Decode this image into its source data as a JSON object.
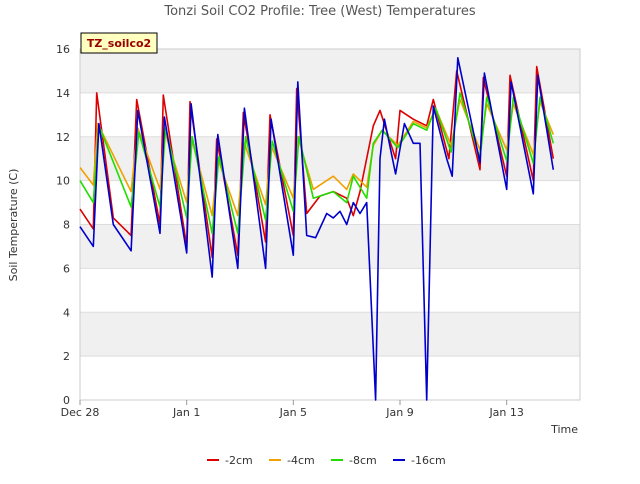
{
  "chart_data": {
    "type": "line",
    "title": "Tonzi Soil CO2 Profile: Tree (West) Temperatures",
    "xlabel": "Time",
    "ylabel": "Soil Temperature (C)",
    "badge": "TZ_soilco2",
    "xlim": [
      "2022-12-28",
      "2023-01-15 18:00"
    ],
    "ylim": [
      0,
      16
    ],
    "x_ticks": [
      {
        "x": "2022-12-28",
        "label": "Dec 28"
      },
      {
        "x": "2023-01-01",
        "label": "Jan 1"
      },
      {
        "x": "2023-01-05",
        "label": "Jan 5"
      },
      {
        "x": "2023-01-09",
        "label": "Jan 9"
      },
      {
        "x": "2023-01-13",
        "label": "Jan 13"
      }
    ],
    "y_ticks": [
      0,
      2,
      4,
      6,
      8,
      10,
      12,
      14,
      16
    ],
    "grid": "horizontal bands",
    "legend_position": "bottom",
    "series": [
      {
        "name": "-2cm",
        "color": "#dd0000",
        "points": [
          [
            "2022-12-28 00:00",
            8.7
          ],
          [
            "2022-12-28 12:00",
            7.8
          ],
          [
            "2022-12-28 15:00",
            14.0
          ],
          [
            "2022-12-29 06:00",
            8.3
          ],
          [
            "2022-12-29 22:00",
            7.5
          ],
          [
            "2022-12-30 03:00",
            13.7
          ],
          [
            "2022-12-31 00:00",
            8.0
          ],
          [
            "2022-12-31 03:00",
            13.9
          ],
          [
            "2023-01-01 00:00",
            7.0
          ],
          [
            "2023-01-01 03:00",
            13.6
          ],
          [
            "2023-01-01 23:00",
            6.5
          ],
          [
            "2023-01-02 03:00",
            11.9
          ],
          [
            "2023-01-02 22:00",
            6.6
          ],
          [
            "2023-01-03 03:00",
            13.1
          ],
          [
            "2023-01-03 23:00",
            7.2
          ],
          [
            "2023-01-04 03:00",
            13.0
          ],
          [
            "2023-01-05 00:00",
            7.5
          ],
          [
            "2023-01-05 03:00",
            14.2
          ],
          [
            "2023-01-05 12:00",
            8.5
          ],
          [
            "2023-01-06 00:00",
            9.3
          ],
          [
            "2023-01-06 12:00",
            9.5
          ],
          [
            "2023-01-07 00:00",
            9.2
          ],
          [
            "2023-01-07 06:00",
            8.4
          ],
          [
            "2023-01-07 12:00",
            9.5
          ],
          [
            "2023-01-08 00:00",
            12.5
          ],
          [
            "2023-01-08 06:00",
            13.2
          ],
          [
            "2023-01-08 20:00",
            11.0
          ],
          [
            "2023-01-09 00:00",
            13.2
          ],
          [
            "2023-01-09 12:00",
            12.8
          ],
          [
            "2023-01-10 00:00",
            12.5
          ],
          [
            "2023-01-10 06:00",
            13.7
          ],
          [
            "2023-01-10 20:00",
            11.0
          ],
          [
            "2023-01-11 03:00",
            15.0
          ],
          [
            "2023-01-12 00:00",
            10.5
          ],
          [
            "2023-01-12 03:00",
            14.7
          ],
          [
            "2023-01-13 00:00",
            10.2
          ],
          [
            "2023-01-13 03:00",
            14.8
          ],
          [
            "2023-01-14 00:00",
            10.0
          ],
          [
            "2023-01-14 03:00",
            15.2
          ],
          [
            "2023-01-14 18:00",
            11.0
          ]
        ]
      },
      {
        "name": "-4cm",
        "color": "#f0a000",
        "points": [
          [
            "2022-12-28 00:00",
            10.6
          ],
          [
            "2022-12-28 12:00",
            9.8
          ],
          [
            "2022-12-28 16:00",
            12.6
          ],
          [
            "2022-12-29 22:00",
            9.5
          ],
          [
            "2022-12-30 04:00",
            12.4
          ],
          [
            "2022-12-31 00:00",
            9.6
          ],
          [
            "2022-12-31 04:00",
            12.3
          ],
          [
            "2023-01-01 00:00",
            9.0
          ],
          [
            "2023-01-01 04:00",
            12.0
          ],
          [
            "2023-01-01 23:00",
            8.4
          ],
          [
            "2023-01-02 04:00",
            11.0
          ],
          [
            "2023-01-02 22:00",
            8.4
          ],
          [
            "2023-01-03 04:00",
            11.7
          ],
          [
            "2023-01-03 23:00",
            8.9
          ],
          [
            "2023-01-04 04:00",
            11.6
          ],
          [
            "2023-01-05 00:00",
            9.2
          ],
          [
            "2023-01-05 04:00",
            12.0
          ],
          [
            "2023-01-05 18:00",
            9.6
          ],
          [
            "2023-01-06 12:00",
            10.2
          ],
          [
            "2023-01-07 00:00",
            9.6
          ],
          [
            "2023-01-07 06:00",
            10.3
          ],
          [
            "2023-01-07 18:00",
            9.7
          ],
          [
            "2023-01-08 00:00",
            11.6
          ],
          [
            "2023-01-08 08:00",
            12.3
          ],
          [
            "2023-01-08 22:00",
            11.6
          ],
          [
            "2023-01-09 12:00",
            12.7
          ],
          [
            "2023-01-10 00:00",
            12.4
          ],
          [
            "2023-01-10 08:00",
            13.3
          ],
          [
            "2023-01-10 22:00",
            11.6
          ],
          [
            "2023-01-11 06:00",
            13.7
          ],
          [
            "2023-01-12 00:00",
            11.4
          ],
          [
            "2023-01-12 06:00",
            13.5
          ],
          [
            "2023-01-13 00:00",
            11.4
          ],
          [
            "2023-01-13 06:00",
            13.5
          ],
          [
            "2023-01-14 00:00",
            11.2
          ],
          [
            "2023-01-14 06:00",
            13.6
          ],
          [
            "2023-01-14 18:00",
            12.1
          ]
        ]
      },
      {
        "name": "-8cm",
        "color": "#22dd00",
        "points": [
          [
            "2022-12-28 00:00",
            10.0
          ],
          [
            "2022-12-28 12:00",
            9.0
          ],
          [
            "2022-12-28 17:00",
            12.5
          ],
          [
            "2022-12-29 22:00",
            8.8
          ],
          [
            "2022-12-30 05:00",
            12.2
          ],
          [
            "2022-12-31 00:00",
            8.8
          ],
          [
            "2022-12-31 05:00",
            12.4
          ],
          [
            "2023-01-01 00:00",
            8.3
          ],
          [
            "2023-01-01 05:00",
            12.0
          ],
          [
            "2023-01-01 23:00",
            7.6
          ],
          [
            "2023-01-02 05:00",
            11.1
          ],
          [
            "2023-01-02 22:00",
            7.6
          ],
          [
            "2023-01-03 05:00",
            12.0
          ],
          [
            "2023-01-03 23:00",
            8.2
          ],
          [
            "2023-01-04 05:00",
            11.8
          ],
          [
            "2023-01-05 00:00",
            8.6
          ],
          [
            "2023-01-05 05:00",
            12.0
          ],
          [
            "2023-01-05 18:00",
            9.2
          ],
          [
            "2023-01-06 12:00",
            9.5
          ],
          [
            "2023-01-07 00:00",
            9.0
          ],
          [
            "2023-01-07 06:00",
            10.2
          ],
          [
            "2023-01-07 18:00",
            9.2
          ],
          [
            "2023-01-08 00:00",
            11.7
          ],
          [
            "2023-01-08 08:00",
            12.3
          ],
          [
            "2023-01-08 22:00",
            11.5
          ],
          [
            "2023-01-09 12:00",
            12.6
          ],
          [
            "2023-01-10 00:00",
            12.3
          ],
          [
            "2023-01-10 08:00",
            13.3
          ],
          [
            "2023-01-10 22:00",
            11.3
          ],
          [
            "2023-01-11 06:00",
            14.0
          ],
          [
            "2023-01-12 00:00",
            11.0
          ],
          [
            "2023-01-12 06:00",
            13.8
          ],
          [
            "2023-01-13 00:00",
            10.9
          ],
          [
            "2023-01-13 06:00",
            13.8
          ],
          [
            "2023-01-14 00:00",
            10.8
          ],
          [
            "2023-01-14 06:00",
            13.8
          ],
          [
            "2023-01-14 18:00",
            11.7
          ]
        ]
      },
      {
        "name": "-16cm",
        "color": "#0000cc",
        "points": [
          [
            "2022-12-28 00:00",
            7.9
          ],
          [
            "2022-12-28 12:00",
            7.0
          ],
          [
            "2022-12-28 17:00",
            12.6
          ],
          [
            "2022-12-29 06:00",
            8.0
          ],
          [
            "2022-12-29 22:00",
            6.8
          ],
          [
            "2022-12-30 04:00",
            13.2
          ],
          [
            "2022-12-31 00:00",
            7.6
          ],
          [
            "2022-12-31 04:00",
            12.9
          ],
          [
            "2023-01-01 00:00",
            6.7
          ],
          [
            "2023-01-01 04:00",
            13.5
          ],
          [
            "2023-01-01 23:00",
            5.6
          ],
          [
            "2023-01-02 04:00",
            12.1
          ],
          [
            "2023-01-02 22:00",
            6.0
          ],
          [
            "2023-01-03 04:00",
            13.3
          ],
          [
            "2023-01-03 23:00",
            6.0
          ],
          [
            "2023-01-04 04:00",
            12.8
          ],
          [
            "2023-01-05 00:00",
            6.6
          ],
          [
            "2023-01-05 04:00",
            14.5
          ],
          [
            "2023-01-05 12:00",
            7.5
          ],
          [
            "2023-01-05 20:00",
            7.4
          ],
          [
            "2023-01-06 06:00",
            8.5
          ],
          [
            "2023-01-06 12:00",
            8.3
          ],
          [
            "2023-01-06 18:00",
            8.6
          ],
          [
            "2023-01-07 00:00",
            8.0
          ],
          [
            "2023-01-07 06:00",
            9.0
          ],
          [
            "2023-01-07 12:00",
            8.5
          ],
          [
            "2023-01-07 18:00",
            9.0
          ],
          [
            "2023-01-08 02:00",
            0.0
          ],
          [
            "2023-01-08 06:00",
            11.0
          ],
          [
            "2023-01-08 10:00",
            12.8
          ],
          [
            "2023-01-08 20:00",
            10.3
          ],
          [
            "2023-01-09 04:00",
            12.6
          ],
          [
            "2023-01-09 12:00",
            11.7
          ],
          [
            "2023-01-09 18:00",
            11.7
          ],
          [
            "2023-01-10 00:00",
            0.0
          ],
          [
            "2023-01-10 06:00",
            13.4
          ],
          [
            "2023-01-10 18:00",
            11.0
          ],
          [
            "2023-01-10 23:00",
            10.2
          ],
          [
            "2023-01-11 04:00",
            15.6
          ],
          [
            "2023-01-12 00:00",
            10.8
          ],
          [
            "2023-01-12 04:00",
            14.9
          ],
          [
            "2023-01-13 00:00",
            9.6
          ],
          [
            "2023-01-13 04:00",
            14.5
          ],
          [
            "2023-01-14 00:00",
            9.4
          ],
          [
            "2023-01-14 04:00",
            14.8
          ],
          [
            "2023-01-14 18:00",
            10.5
          ]
        ]
      }
    ]
  }
}
